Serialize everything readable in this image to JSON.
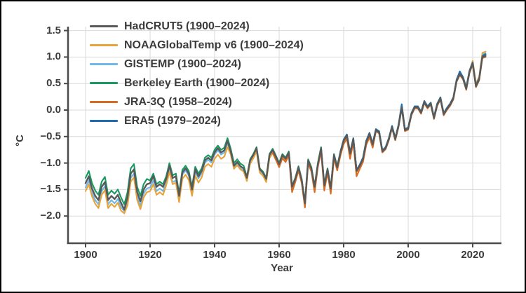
{
  "frame": {
    "background": "#ffffff",
    "border_color": "#000000"
  },
  "axis": {
    "x_title": "Year",
    "y_title": "°C",
    "axis_color": "#4a4a4a",
    "grid_color": "#d9d9d9",
    "label_color": "#3b3b3b"
  },
  "chart_data": {
    "type": "line",
    "xlabel": "Year",
    "ylabel": "°C",
    "xlim": [
      1895,
      2028
    ],
    "ylim": [
      -2.3,
      1.6
    ],
    "grid": true,
    "legend_position": "top-left-inside",
    "x_ticks": [
      {
        "v": 1900,
        "label": "1900"
      },
      {
        "v": 1920,
        "label": "1920"
      },
      {
        "v": 1940,
        "label": "1940"
      },
      {
        "v": 1960,
        "label": "1960"
      },
      {
        "v": 1980,
        "label": "1980"
      },
      {
        "v": 2000,
        "label": "2000"
      },
      {
        "v": 2020,
        "label": "2020"
      }
    ],
    "y_ticks": [
      {
        "v": 1.5,
        "label": "1.5"
      },
      {
        "v": 1.0,
        "label": "1.0"
      },
      {
        "v": 0.5,
        "label": "0.5"
      },
      {
        "v": 0.0,
        "label": "0.0"
      },
      {
        "v": -0.5,
        "label": "−0.5"
      },
      {
        "v": -1.0,
        "label": "−1.0"
      },
      {
        "v": -1.5,
        "label": "−1.5"
      },
      {
        "v": -2.0,
        "label": "−2.0"
      }
    ],
    "series": [
      {
        "name": "hadcrut5",
        "label": "HadCRUT5 (1900–2024)",
        "color": "#58595b",
        "start_year": 1900,
        "end_year": 2024,
        "values": [
          -1.38,
          -1.25,
          -1.48,
          -1.62,
          -1.7,
          -1.45,
          -1.36,
          -1.7,
          -1.62,
          -1.68,
          -1.6,
          -1.75,
          -1.88,
          -1.65,
          -1.2,
          -1.12,
          -1.55,
          -1.72,
          -1.5,
          -1.4,
          -1.38,
          -1.25,
          -1.45,
          -1.4,
          -1.45,
          -1.3,
          -1.05,
          -1.28,
          -1.25,
          -1.62,
          -1.18,
          -1.1,
          -1.2,
          -1.5,
          -1.12,
          -1.25,
          -1.15,
          -0.95,
          -0.9,
          -0.95,
          -0.8,
          -0.72,
          -0.8,
          -0.76,
          -0.58,
          -0.78,
          -1.05,
          -0.98,
          -1.06,
          -1.1,
          -1.28,
          -0.95,
          -0.85,
          -0.72,
          -1.12,
          -1.18,
          -1.3,
          -0.85,
          -0.75,
          -0.88,
          -1.02,
          -0.85,
          -0.92,
          -0.8,
          -1.45,
          -1.3,
          -1.08,
          -1.32,
          -1.76,
          -0.95,
          -1.1,
          -1.45,
          -1.02,
          -0.72,
          -1.42,
          -1.12,
          -1.48,
          -0.85,
          -1.08,
          -0.8,
          -0.58,
          -0.48,
          -0.82,
          -0.55,
          -1.15,
          -1.05,
          -0.92,
          -0.6,
          -0.45,
          -0.65,
          -0.38,
          -0.42,
          -0.78,
          -0.72,
          -0.55,
          -0.32,
          -0.55,
          -0.3,
          0.05,
          -0.38,
          -0.35,
          -0.08,
          0.05,
          0.05,
          -0.05,
          0.15,
          0.05,
          0.12,
          -0.15,
          0.1,
          0.22,
          -0.08,
          0.02,
          0.1,
          0.22,
          0.55,
          0.68,
          0.6,
          0.4,
          0.72,
          0.88,
          0.45,
          0.58,
          1.0,
          1.02
        ]
      },
      {
        "name": "noaaglobaltemp",
        "label": "NOAAGlobalTemp v6 (1900–2024)",
        "color": "#eaa339",
        "start_year": 1900,
        "end_year": 2024,
        "values": [
          -1.53,
          -1.4,
          -1.63,
          -1.77,
          -1.85,
          -1.6,
          -1.51,
          -1.85,
          -1.77,
          -1.83,
          -1.75,
          -1.9,
          -1.95,
          -1.8,
          -1.35,
          -1.27,
          -1.7,
          -1.87,
          -1.65,
          -1.55,
          -1.53,
          -1.4,
          -1.6,
          -1.55,
          -1.6,
          -1.42,
          -1.17,
          -1.4,
          -1.37,
          -1.74,
          -1.3,
          -1.22,
          -1.32,
          -1.62,
          -1.24,
          -1.37,
          -1.27,
          -1.07,
          -1.02,
          -1.07,
          -0.92,
          -0.84,
          -0.92,
          -0.88,
          -0.7,
          -0.84,
          -1.11,
          -1.04,
          -1.12,
          -1.16,
          -1.34,
          -1.01,
          -0.91,
          -0.78,
          -1.18,
          -1.24,
          -1.36,
          -0.91,
          -0.81,
          -0.94,
          -1.04,
          -0.87,
          -0.94,
          -0.82,
          -1.47,
          -1.32,
          -1.1,
          -1.34,
          -1.78,
          -0.97,
          -1.12,
          -1.47,
          -1.04,
          -0.74,
          -1.44,
          -1.14,
          -1.5,
          -0.87,
          -1.1,
          -0.82,
          -0.6,
          -0.5,
          -0.84,
          -0.57,
          -1.17,
          -1.07,
          -0.94,
          -0.62,
          -0.47,
          -0.67,
          -0.4,
          -0.44,
          -0.8,
          -0.74,
          -0.57,
          -0.34,
          -0.57,
          -0.32,
          0.03,
          -0.4,
          -0.33,
          -0.06,
          0.07,
          0.07,
          -0.03,
          0.17,
          0.07,
          0.14,
          -0.13,
          0.12,
          0.24,
          -0.06,
          0.04,
          0.12,
          0.24,
          0.57,
          0.7,
          0.62,
          0.42,
          0.74,
          0.93,
          0.5,
          0.63,
          1.08,
          1.1
        ]
      },
      {
        "name": "gistemp",
        "label": "GISTEMP (1900–2024)",
        "color": "#70b8e6",
        "start_year": 1900,
        "end_year": 2024,
        "values": [
          -1.46,
          -1.33,
          -1.56,
          -1.7,
          -1.78,
          -1.53,
          -1.44,
          -1.78,
          -1.7,
          -1.76,
          -1.68,
          -1.83,
          -1.91,
          -1.73,
          -1.28,
          -1.2,
          -1.63,
          -1.8,
          -1.58,
          -1.48,
          -1.46,
          -1.33,
          -1.53,
          -1.48,
          -1.53,
          -1.38,
          -1.13,
          -1.36,
          -1.33,
          -1.7,
          -1.22,
          -1.14,
          -1.24,
          -1.54,
          -1.16,
          -1.29,
          -1.19,
          -0.99,
          -0.94,
          -0.99,
          -0.84,
          -0.76,
          -0.84,
          -0.8,
          -0.62,
          -0.82,
          -1.09,
          -1.02,
          -1.1,
          -1.14,
          -1.32,
          -0.99,
          -0.89,
          -0.76,
          -1.16,
          -1.22,
          -1.34,
          -0.89,
          -0.79,
          -0.92,
          -1.03,
          -0.86,
          -0.93,
          -0.81,
          -1.46,
          -1.31,
          -1.09,
          -1.33,
          -1.8,
          -0.96,
          -1.11,
          -1.46,
          -1.03,
          -0.73,
          -1.43,
          -1.13,
          -1.49,
          -0.86,
          -1.09,
          -0.81,
          -0.59,
          -0.49,
          -0.83,
          -0.56,
          -1.16,
          -1.06,
          -0.93,
          -0.61,
          -0.46,
          -0.66,
          -0.39,
          -0.43,
          -0.79,
          -0.73,
          -0.56,
          -0.33,
          -0.56,
          -0.31,
          0.04,
          -0.39,
          -0.36,
          -0.09,
          0.04,
          0.04,
          -0.06,
          0.14,
          0.04,
          0.11,
          -0.16,
          0.09,
          0.21,
          -0.09,
          0.01,
          0.09,
          0.21,
          0.58,
          0.71,
          0.63,
          0.43,
          0.75,
          0.91,
          0.48,
          0.61,
          1.04,
          1.1
        ]
      },
      {
        "name": "berkeley-earth",
        "label": "Berkeley Earth (1900–2024)",
        "color": "#169a5f",
        "start_year": 1900,
        "end_year": 2024,
        "values": [
          -1.28,
          -1.15,
          -1.38,
          -1.52,
          -1.6,
          -1.35,
          -1.26,
          -1.6,
          -1.52,
          -1.58,
          -1.5,
          -1.65,
          -1.78,
          -1.55,
          -1.1,
          -1.02,
          -1.45,
          -1.62,
          -1.4,
          -1.3,
          -1.33,
          -1.2,
          -1.4,
          -1.35,
          -1.4,
          -1.25,
          -1.0,
          -1.23,
          -1.2,
          -1.57,
          -1.13,
          -1.05,
          -1.15,
          -1.45,
          -1.07,
          -1.2,
          -1.1,
          -0.9,
          -0.85,
          -0.9,
          -0.75,
          -0.67,
          -0.75,
          -0.71,
          -0.53,
          -0.73,
          -1.0,
          -0.93,
          -1.01,
          -1.05,
          -1.26,
          -0.93,
          -0.83,
          -0.7,
          -1.1,
          -1.16,
          -1.28,
          -0.83,
          -0.73,
          -0.86,
          -1.0,
          -0.83,
          -0.9,
          -0.78,
          -1.43,
          -1.28,
          -1.06,
          -1.3,
          -1.74,
          -0.93,
          -1.08,
          -1.43,
          -1.0,
          -0.7,
          -1.4,
          -1.1,
          -1.46,
          -0.83,
          -1.06,
          -0.78,
          -0.56,
          -0.46,
          -0.8,
          -0.53,
          -1.13,
          -1.03,
          -0.9,
          -0.58,
          -0.43,
          -0.63,
          -0.36,
          -0.4,
          -0.76,
          -0.7,
          -0.53,
          -0.3,
          -0.53,
          -0.28,
          0.07,
          -0.36,
          -0.33,
          -0.06,
          0.07,
          0.07,
          -0.03,
          0.17,
          0.07,
          0.14,
          -0.13,
          0.12,
          0.24,
          -0.06,
          0.04,
          0.12,
          0.24,
          0.57,
          0.7,
          0.62,
          0.42,
          0.74,
          0.9,
          0.47,
          0.6,
          1.02,
          1.06
        ]
      },
      {
        "name": "jra-3q",
        "label": "JRA-3Q (1958–2024)",
        "color": "#d96b20",
        "start_year": 1958,
        "end_year": 2024,
        "values": [
          -0.81,
          -0.94,
          -1.08,
          -0.91,
          -0.98,
          -0.86,
          -1.55,
          -1.36,
          -1.14,
          -1.38,
          -1.84,
          -1.01,
          -1.16,
          -1.55,
          -1.08,
          -0.78,
          -1.52,
          -1.18,
          -1.58,
          -0.91,
          -1.14,
          -0.86,
          -0.64,
          -0.54,
          -0.92,
          -0.61,
          -1.25,
          -1.11,
          -0.98,
          -0.66,
          -0.51,
          -0.71,
          -0.4,
          -0.44,
          -0.8,
          -0.74,
          -0.57,
          -0.34,
          -0.57,
          -0.32,
          0.03,
          -0.4,
          -0.37,
          -0.1,
          0.03,
          0.03,
          -0.07,
          0.13,
          0.03,
          0.1,
          -0.17,
          0.08,
          0.2,
          -0.1,
          0.0,
          0.08,
          0.2,
          0.53,
          0.66,
          0.58,
          0.38,
          0.7,
          0.86,
          0.43,
          0.56,
          0.98,
          1.0
        ]
      },
      {
        "name": "era5",
        "label": "ERA5 (1979–2024)",
        "color": "#1f6cb0",
        "start_year": 1979,
        "end_year": 2024,
        "values": [
          -0.78,
          -0.56,
          -0.46,
          -0.8,
          -0.53,
          -1.13,
          -1.03,
          -0.9,
          -0.58,
          -0.43,
          -0.63,
          -0.36,
          -0.4,
          -0.76,
          -0.7,
          -0.53,
          -0.3,
          -0.53,
          -0.28,
          0.11,
          -0.36,
          -0.33,
          -0.06,
          0.07,
          0.07,
          -0.03,
          0.17,
          0.07,
          0.14,
          -0.13,
          0.12,
          0.24,
          -0.06,
          0.04,
          0.12,
          0.24,
          0.57,
          0.73,
          0.62,
          0.42,
          0.74,
          0.9,
          0.47,
          0.6,
          1.02,
          1.05
        ]
      }
    ]
  }
}
